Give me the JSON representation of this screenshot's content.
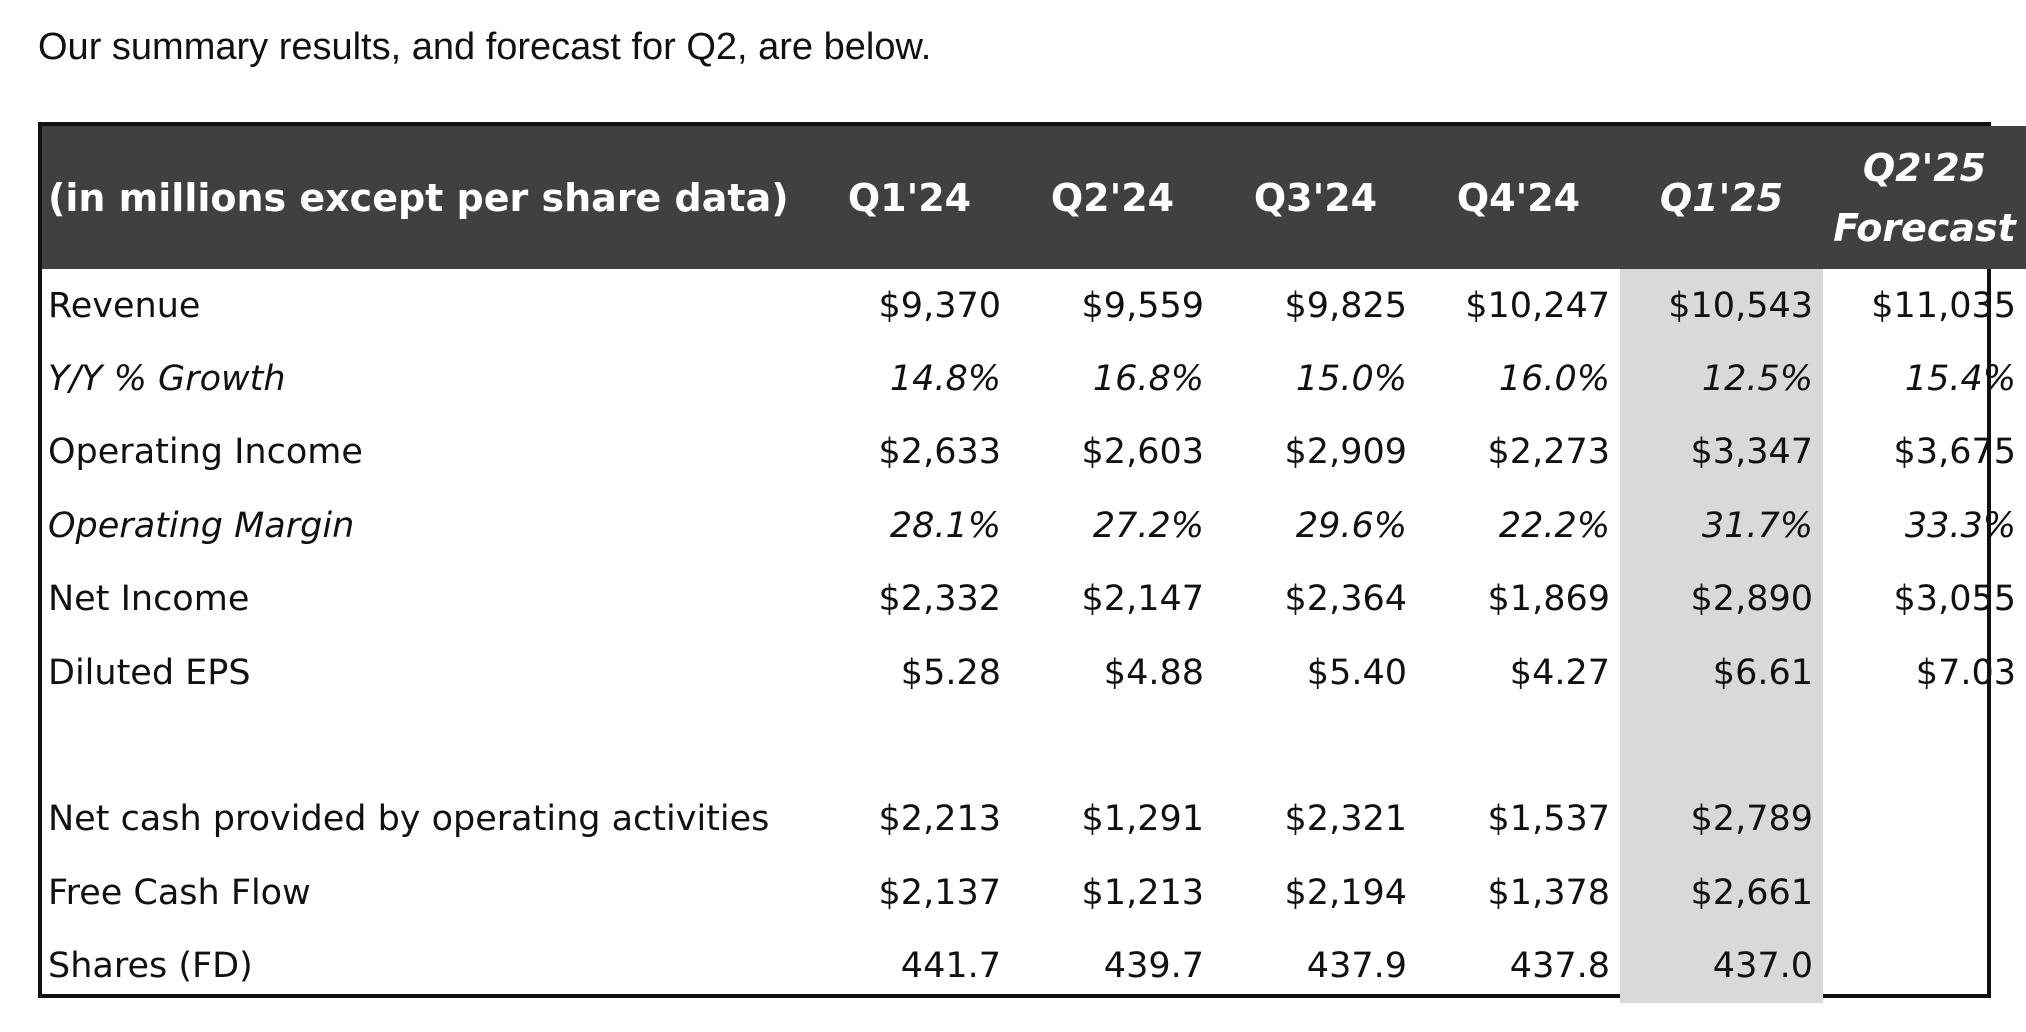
{
  "intro": "Our summary results, and forecast for Q2, are below.",
  "table": {
    "header_label": "(in millions except per share data)",
    "columns": [
      "Q1'24",
      "Q2'24",
      "Q3'24",
      "Q4'24",
      "Q1'25"
    ],
    "forecast_header": {
      "line1": "Q2'25",
      "line2": "Forecast"
    },
    "highlight_column": "Q1'25",
    "highlight_color": "#d9d9d9",
    "header_bg": "#404040",
    "rows": [
      {
        "label": "Revenue",
        "values": [
          "$9,370",
          "$9,559",
          "$9,825",
          "$10,247",
          "$10,543",
          "$11,035"
        ]
      },
      {
        "label": "Y/Y % Growth",
        "italic": true,
        "values": [
          "14.8%",
          "16.8%",
          "15.0%",
          "16.0%",
          "12.5%",
          "15.4%"
        ]
      },
      {
        "label": "Operating Income",
        "values": [
          "$2,633",
          "$2,603",
          "$2,909",
          "$2,273",
          "$3,347",
          "$3,675"
        ]
      },
      {
        "label": "Operating Margin",
        "italic": true,
        "values": [
          "28.1%",
          "27.2%",
          "29.6%",
          "22.2%",
          "31.7%",
          "33.3%"
        ]
      },
      {
        "label": "Net Income",
        "values": [
          "$2,332",
          "$2,147",
          "$2,364",
          "$1,869",
          "$2,890",
          "$3,055"
        ]
      },
      {
        "label": "Diluted EPS",
        "values": [
          "$5.28",
          "$4.88",
          "$5.40",
          "$4.27",
          "$6.61",
          "$7.03"
        ]
      },
      {
        "label": "Net cash provided by operating activities",
        "values": [
          "$2,213",
          "$1,291",
          "$2,321",
          "$1,537",
          "$2,789",
          ""
        ]
      },
      {
        "label": "Free Cash Flow",
        "values": [
          "$2,137",
          "$1,213",
          "$2,194",
          "$1,378",
          "$2,661",
          ""
        ]
      },
      {
        "label": "Shares (FD)",
        "values": [
          "441.7",
          "439.7",
          "437.9",
          "437.8",
          "437.0",
          ""
        ]
      }
    ]
  }
}
